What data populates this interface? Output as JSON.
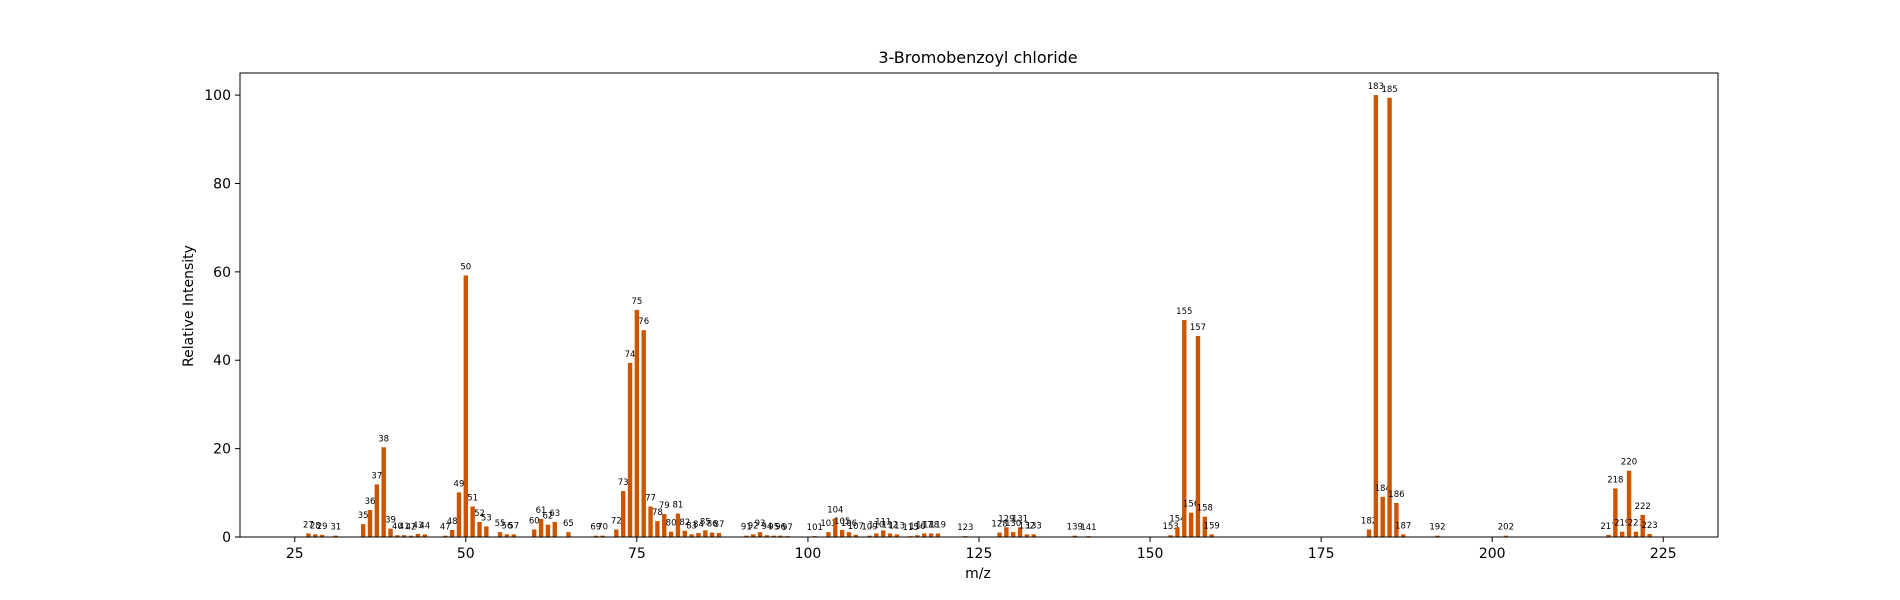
{
  "chart_data": {
    "type": "bar",
    "title": "3-Bromobenzoyl chloride",
    "xlabel": "m/z",
    "ylabel": "Relative Intensity",
    "xlim": [
      17,
      233
    ],
    "ylim": [
      0,
      105
    ],
    "xticks": [
      25,
      50,
      75,
      100,
      125,
      150,
      175,
      200,
      225
    ],
    "yticks": [
      0,
      20,
      40,
      60,
      80,
      100
    ],
    "bar_color": "#cc5500",
    "grid": false,
    "legend": "none",
    "x": [
      27,
      28,
      29,
      31,
      35,
      36,
      37,
      38,
      39,
      40,
      41,
      42,
      43,
      44,
      47,
      48,
      49,
      50,
      51,
      52,
      53,
      55,
      56,
      57,
      60,
      61,
      62,
      63,
      65,
      69,
      70,
      72,
      73,
      74,
      75,
      76,
      77,
      78,
      79,
      80,
      81,
      82,
      83,
      84,
      85,
      86,
      87,
      91,
      92,
      93,
      94,
      95,
      96,
      97,
      101,
      103,
      104,
      105,
      106,
      107,
      109,
      110,
      111,
      112,
      113,
      115,
      116,
      117,
      118,
      119,
      123,
      128,
      129,
      130,
      131,
      132,
      133,
      139,
      141,
      153,
      154,
      155,
      156,
      157,
      158,
      159,
      182,
      183,
      184,
      185,
      186,
      187,
      192,
      202,
      217,
      218,
      219,
      220,
      221,
      222,
      223
    ],
    "values": [
      0.8,
      0.6,
      0.5,
      0.3,
      2.9,
      6.1,
      11.9,
      20.3,
      1.9,
      0.4,
      0.4,
      0.3,
      0.7,
      0.6,
      0.3,
      1.6,
      10.1,
      59.2,
      6.9,
      3.4,
      2.4,
      1.1,
      0.6,
      0.6,
      1.7,
      4.1,
      2.8,
      3.4,
      1.1,
      0.3,
      0.3,
      1.7,
      10.4,
      39.4,
      51.4,
      46.8,
      6.9,
      3.6,
      5.2,
      1.2,
      5.3,
      1.4,
      0.6,
      0.9,
      1.5,
      1.0,
      0.9,
      0.3,
      0.6,
      1.1,
      0.4,
      0.3,
      0.3,
      0.2,
      0.2,
      1.1,
      4.2,
      1.6,
      1.1,
      0.5,
      0.3,
      0.8,
      1.5,
      0.8,
      0.6,
      0.2,
      0.4,
      0.8,
      0.8,
      0.8,
      0.2,
      1.0,
      2.2,
      1.1,
      2.2,
      0.6,
      0.6,
      0.3,
      0.2,
      0.4,
      2.2,
      49.1,
      5.5,
      45.5,
      4.6,
      0.6,
      1.7,
      100.0,
      9.1,
      99.4,
      7.7,
      0.6,
      0.3,
      0.3,
      0.5,
      11.0,
      1.2,
      15.0,
      1.2,
      5.0,
      0.7
    ]
  }
}
